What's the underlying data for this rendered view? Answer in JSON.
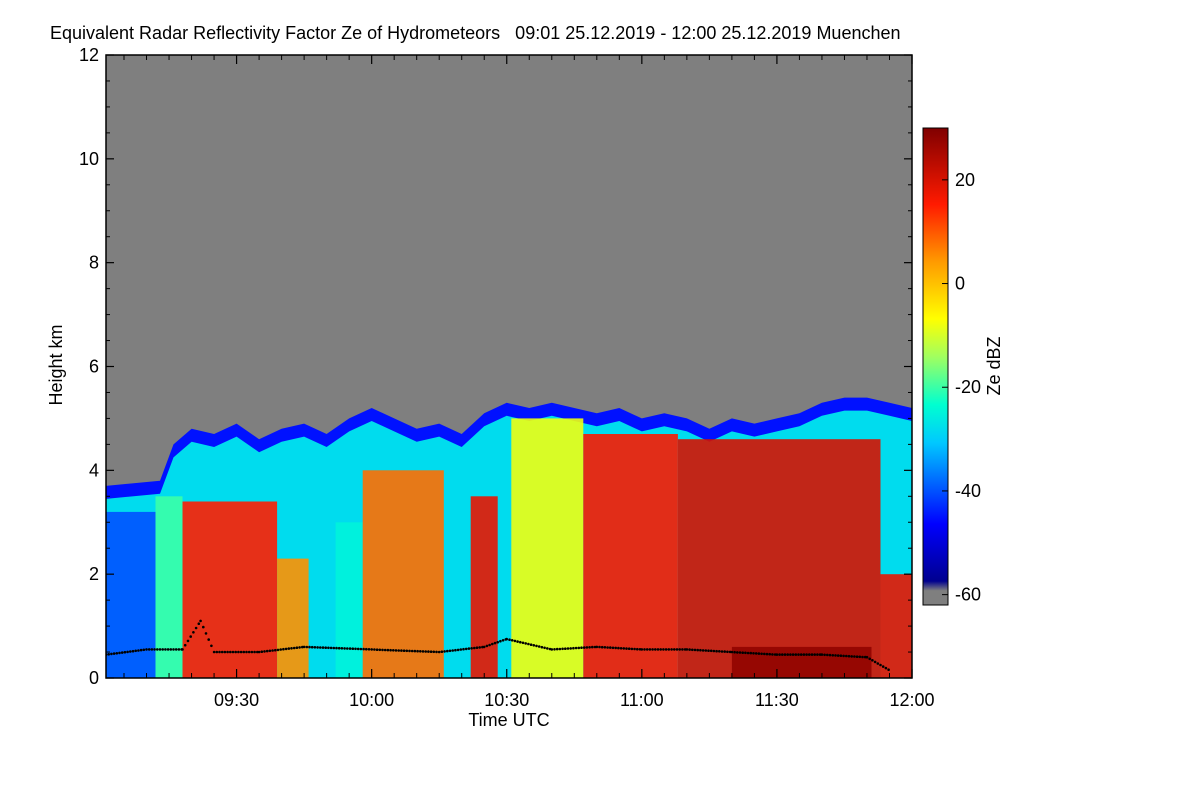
{
  "chart_data": {
    "type": "heatmap",
    "title": "Equivalent Radar Reflectivity Factor Ze of Hydrometeors   09:01 25.12.2019 - 12:00 25.12.2019 Muenchen",
    "xlabel": "Time UTC",
    "ylabel": "Height km",
    "colorbar_label": "Ze dBZ",
    "x_range_minutes": [
      541,
      720
    ],
    "x_ticks": [
      {
        "minute": 570,
        "label": "09:30"
      },
      {
        "minute": 600,
        "label": "10:00"
      },
      {
        "minute": 630,
        "label": "10:30"
      },
      {
        "minute": 660,
        "label": "11:00"
      },
      {
        "minute": 690,
        "label": "11:30"
      },
      {
        "minute": 720,
        "label": "12:00"
      }
    ],
    "ylim": [
      0,
      12
    ],
    "y_ticks": [
      0,
      2,
      4,
      6,
      8,
      10,
      12
    ],
    "clim": [
      -62,
      30
    ],
    "colorbar_ticks": [
      20,
      0,
      -20,
      -40,
      -60
    ],
    "no_echo_color": "#7f7f7f",
    "echo_top_km": [
      {
        "minute": 541,
        "top": 3.7
      },
      {
        "minute": 553,
        "top": 3.8
      },
      {
        "minute": 556,
        "top": 4.5
      },
      {
        "minute": 560,
        "top": 4.8
      },
      {
        "minute": 565,
        "top": 4.7
      },
      {
        "minute": 570,
        "top": 4.9
      },
      {
        "minute": 575,
        "top": 4.6
      },
      {
        "minute": 580,
        "top": 4.8
      },
      {
        "minute": 585,
        "top": 4.9
      },
      {
        "minute": 590,
        "top": 4.7
      },
      {
        "minute": 595,
        "top": 5.0
      },
      {
        "minute": 600,
        "top": 5.2
      },
      {
        "minute": 605,
        "top": 5.0
      },
      {
        "minute": 610,
        "top": 4.8
      },
      {
        "minute": 615,
        "top": 4.9
      },
      {
        "minute": 620,
        "top": 4.7
      },
      {
        "minute": 625,
        "top": 5.1
      },
      {
        "minute": 630,
        "top": 5.3
      },
      {
        "minute": 635,
        "top": 5.2
      },
      {
        "minute": 640,
        "top": 5.3
      },
      {
        "minute": 645,
        "top": 5.2
      },
      {
        "minute": 650,
        "top": 5.1
      },
      {
        "minute": 655,
        "top": 5.2
      },
      {
        "minute": 660,
        "top": 5.0
      },
      {
        "minute": 665,
        "top": 5.1
      },
      {
        "minute": 670,
        "top": 5.0
      },
      {
        "minute": 675,
        "top": 4.8
      },
      {
        "minute": 680,
        "top": 5.0
      },
      {
        "minute": 685,
        "top": 4.9
      },
      {
        "minute": 690,
        "top": 5.0
      },
      {
        "minute": 695,
        "top": 5.1
      },
      {
        "minute": 700,
        "top": 5.3
      },
      {
        "minute": 705,
        "top": 5.4
      },
      {
        "minute": 710,
        "top": 5.4
      },
      {
        "minute": 715,
        "top": 5.3
      },
      {
        "minute": 720,
        "top": 5.2
      }
    ],
    "reflectivity_regions": [
      {
        "from_minute": 541,
        "to_minute": 552,
        "bottom_km": 0,
        "top_km": 3.2,
        "dbz": -40
      },
      {
        "from_minute": 552,
        "to_minute": 558,
        "bottom_km": 0,
        "top_km": 3.5,
        "dbz": -20
      },
      {
        "from_minute": 558,
        "to_minute": 579,
        "bottom_km": 0,
        "top_km": 3.4,
        "dbz": 15
      },
      {
        "from_minute": 579,
        "to_minute": 586,
        "bottom_km": 0,
        "top_km": 2.3,
        "dbz": 5
      },
      {
        "from_minute": 592,
        "to_minute": 598,
        "bottom_km": 0,
        "top_km": 3.0,
        "dbz": -25
      },
      {
        "from_minute": 598,
        "to_minute": 616,
        "bottom_km": 0,
        "top_km": 4.0,
        "dbz": 8
      },
      {
        "from_minute": 622,
        "to_minute": 628,
        "bottom_km": 0,
        "top_km": 3.5,
        "dbz": 18
      },
      {
        "from_minute": 631,
        "to_minute": 647,
        "bottom_km": 0,
        "top_km": 5.0,
        "dbz": -8
      },
      {
        "from_minute": 647,
        "to_minute": 668,
        "bottom_km": 0,
        "top_km": 4.7,
        "dbz": 16
      },
      {
        "from_minute": 668,
        "to_minute": 713,
        "bottom_km": 0,
        "top_km": 4.6,
        "dbz": 20
      },
      {
        "from_minute": 680,
        "to_minute": 711,
        "bottom_km": 0,
        "top_km": 0.6,
        "dbz": 28
      },
      {
        "from_minute": 713,
        "to_minute": 720,
        "bottom_km": 0,
        "top_km": 2.0,
        "dbz": 18
      }
    ],
    "cloud_base_km": [
      {
        "minute": 541,
        "height": 0.45
      },
      {
        "minute": 550,
        "height": 0.55
      },
      {
        "minute": 558,
        "height": 0.55
      },
      {
        "minute": 562,
        "height": 1.1
      },
      {
        "minute": 565,
        "height": 0.5
      },
      {
        "minute": 575,
        "height": 0.5
      },
      {
        "minute": 585,
        "height": 0.6
      },
      {
        "minute": 600,
        "height": 0.55
      },
      {
        "minute": 615,
        "height": 0.5
      },
      {
        "minute": 625,
        "height": 0.6
      },
      {
        "minute": 630,
        "height": 0.75
      },
      {
        "minute": 640,
        "height": 0.55
      },
      {
        "minute": 650,
        "height": 0.6
      },
      {
        "minute": 660,
        "height": 0.55
      },
      {
        "minute": 670,
        "height": 0.55
      },
      {
        "minute": 680,
        "height": 0.5
      },
      {
        "minute": 690,
        "height": 0.45
      },
      {
        "minute": 700,
        "height": 0.45
      },
      {
        "minute": 710,
        "height": 0.4
      },
      {
        "minute": 715,
        "height": 0.15
      }
    ]
  }
}
